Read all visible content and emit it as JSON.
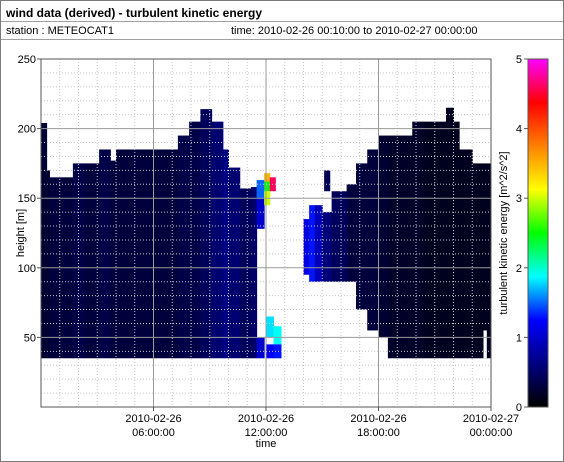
{
  "header": {
    "title": "wind data (derived) - turbulent kinetic energy",
    "station": "station : METEOCAT1",
    "time_range": "time: 2010-02-26 00:10:00 to 2010-02-27 00:00:00"
  },
  "chart_data": {
    "type": "heatmap",
    "xlabel": "time",
    "ylabel": "height [m]",
    "colorbar_label": "turbulent kinetic energy [m^2/s^2]",
    "xlim_hours": [
      0,
      24
    ],
    "ylim": [
      0,
      250
    ],
    "x_ticks": [
      {
        "hour": 6,
        "line1": "2010-02-26",
        "line2": "06:00:00"
      },
      {
        "hour": 12,
        "line1": "2010-02-26",
        "line2": "12:00:00"
      },
      {
        "hour": 18,
        "line1": "2010-02-26",
        "line2": "18:00:00"
      },
      {
        "hour": 24,
        "line1": "2010-02-27",
        "line2": "00:00:00"
      }
    ],
    "y_ticks": [
      50,
      100,
      150,
      200,
      250
    ],
    "colorbar_range": [
      0,
      5
    ],
    "colorbar_ticks": [
      0,
      1,
      2,
      3,
      4,
      5
    ],
    "colormap_stops": [
      "#000000",
      "#000080",
      "#0000ff",
      "#00ffff",
      "#00ff00",
      "#ffff00",
      "#ff8000",
      "#ff0000",
      "#ff00ff"
    ],
    "grid": true,
    "data_columns": [
      {
        "t0": 0.0,
        "t1": 0.3,
        "top": 204,
        "bottom": 35,
        "tke": 0.25
      },
      {
        "t0": 0.3,
        "t1": 0.45,
        "top": 170,
        "bottom": 35,
        "tke": 0.25
      },
      {
        "t0": 0.45,
        "t1": 1.7,
        "top": 165,
        "bottom": 35,
        "tke": 0.3
      },
      {
        "t0": 1.7,
        "t1": 2.3,
        "top": 175,
        "bottom": 35,
        "tke": 0.35
      },
      {
        "t0": 2.3,
        "t1": 3.1,
        "top": 175,
        "bottom": 35,
        "tke": 0.3
      },
      {
        "t0": 3.1,
        "t1": 3.7,
        "top": 185,
        "bottom": 35,
        "tke": 0.35
      },
      {
        "t0": 3.7,
        "t1": 4.0,
        "top": 177,
        "bottom": 35,
        "tke": 0.3
      },
      {
        "t0": 4.0,
        "t1": 7.3,
        "top": 185,
        "bottom": 35,
        "tke": 0.3
      },
      {
        "t0": 7.3,
        "t1": 7.9,
        "top": 195,
        "bottom": 35,
        "tke": 0.35
      },
      {
        "t0": 7.9,
        "t1": 8.5,
        "top": 205,
        "bottom": 35,
        "tke": 0.35
      },
      {
        "t0": 8.5,
        "t1": 9.1,
        "top": 214,
        "bottom": 35,
        "tke": 0.45
      },
      {
        "t0": 9.1,
        "t1": 9.7,
        "top": 205,
        "bottom": 35,
        "tke": 0.55
      },
      {
        "t0": 9.7,
        "t1": 10.0,
        "top": 185,
        "bottom": 35,
        "tke": 0.65
      },
      {
        "t0": 10.0,
        "t1": 10.6,
        "top": 172,
        "bottom": 35,
        "tke": 0.55
      },
      {
        "t0": 10.6,
        "t1": 11.2,
        "top": 157,
        "bottom": 35,
        "tke": 0.45
      },
      {
        "t0": 11.2,
        "t1": 11.5,
        "top": 158,
        "bottom": 35,
        "tke": 0.5
      },
      {
        "t0": 16.3,
        "t1": 16.8,
        "top": 160,
        "bottom": 90,
        "tke": 0.3
      },
      {
        "t0": 16.8,
        "t1": 17.4,
        "top": 175,
        "bottom": 70,
        "tke": 0.3
      },
      {
        "t0": 17.4,
        "t1": 18.0,
        "top": 185,
        "bottom": 55,
        "tke": 0.3
      },
      {
        "t0": 18.0,
        "t1": 18.5,
        "top": 195,
        "bottom": 50,
        "tke": 0.25
      },
      {
        "t0": 18.5,
        "t1": 19.8,
        "top": 195,
        "bottom": 35,
        "tke": 0.2
      },
      {
        "t0": 19.8,
        "t1": 20.4,
        "top": 205,
        "bottom": 35,
        "tke": 0.2
      },
      {
        "t0": 20.4,
        "t1": 21.6,
        "top": 205,
        "bottom": 35,
        "tke": 0.15
      },
      {
        "t0": 21.6,
        "t1": 22.0,
        "top": 215,
        "bottom": 35,
        "tke": 0.15
      },
      {
        "t0": 22.0,
        "t1": 22.3,
        "top": 205,
        "bottom": 35,
        "tke": 0.15
      },
      {
        "t0": 22.3,
        "t1": 23.0,
        "top": 185,
        "bottom": 35,
        "tke": 0.15
      },
      {
        "t0": 23.0,
        "t1": 24.0,
        "top": 175,
        "bottom": 35,
        "tke": 0.15
      }
    ],
    "data_cells": [
      {
        "t0": 11.5,
        "t1": 11.9,
        "h0": 35,
        "h1": 50,
        "tke": 1.0
      },
      {
        "t0": 11.5,
        "t1": 11.9,
        "h0": 128,
        "h1": 150,
        "tke": 1.0
      },
      {
        "t0": 11.5,
        "t1": 11.9,
        "h0": 150,
        "h1": 163,
        "tke": 1.5
      },
      {
        "t0": 11.9,
        "t1": 12.2,
        "h0": 155,
        "h1": 162,
        "tke": 2.5
      },
      {
        "t0": 11.9,
        "t1": 12.2,
        "h0": 145,
        "h1": 155,
        "tke": 3.0
      },
      {
        "t0": 11.9,
        "t1": 12.2,
        "h0": 162,
        "h1": 168,
        "tke": 3.5
      },
      {
        "t0": 12.2,
        "t1": 12.5,
        "h0": 155,
        "h1": 165,
        "tke": 4.6
      },
      {
        "t0": 12.0,
        "t1": 12.4,
        "h0": 50,
        "h1": 65,
        "tke": 1.8
      },
      {
        "t0": 12.0,
        "t1": 12.4,
        "h0": 35,
        "h1": 45,
        "tke": 1.2
      },
      {
        "t0": 12.4,
        "t1": 12.8,
        "h0": 45,
        "h1": 58,
        "tke": 1.9
      },
      {
        "t0": 12.4,
        "t1": 12.8,
        "h0": 35,
        "h1": 45,
        "tke": 1.3
      },
      {
        "t0": 14.0,
        "t1": 14.3,
        "h0": 95,
        "h1": 135,
        "tke": 1.1
      },
      {
        "t0": 14.3,
        "t1": 14.6,
        "h0": 90,
        "h1": 145,
        "tke": 1.3
      },
      {
        "t0": 14.6,
        "t1": 15.0,
        "h0": 90,
        "h1": 145,
        "tke": 0.9
      },
      {
        "t0": 15.0,
        "t1": 15.5,
        "h0": 90,
        "h1": 140,
        "tke": 0.6
      },
      {
        "t0": 15.1,
        "t1": 15.4,
        "h0": 155,
        "h1": 170,
        "tke": 0.4
      },
      {
        "t0": 15.5,
        "t1": 16.3,
        "h0": 90,
        "h1": 155,
        "tke": 0.45
      },
      {
        "t0": 23.6,
        "t1": 23.75,
        "h0": 35,
        "h1": 55,
        "tke": 0.0
      }
    ]
  }
}
